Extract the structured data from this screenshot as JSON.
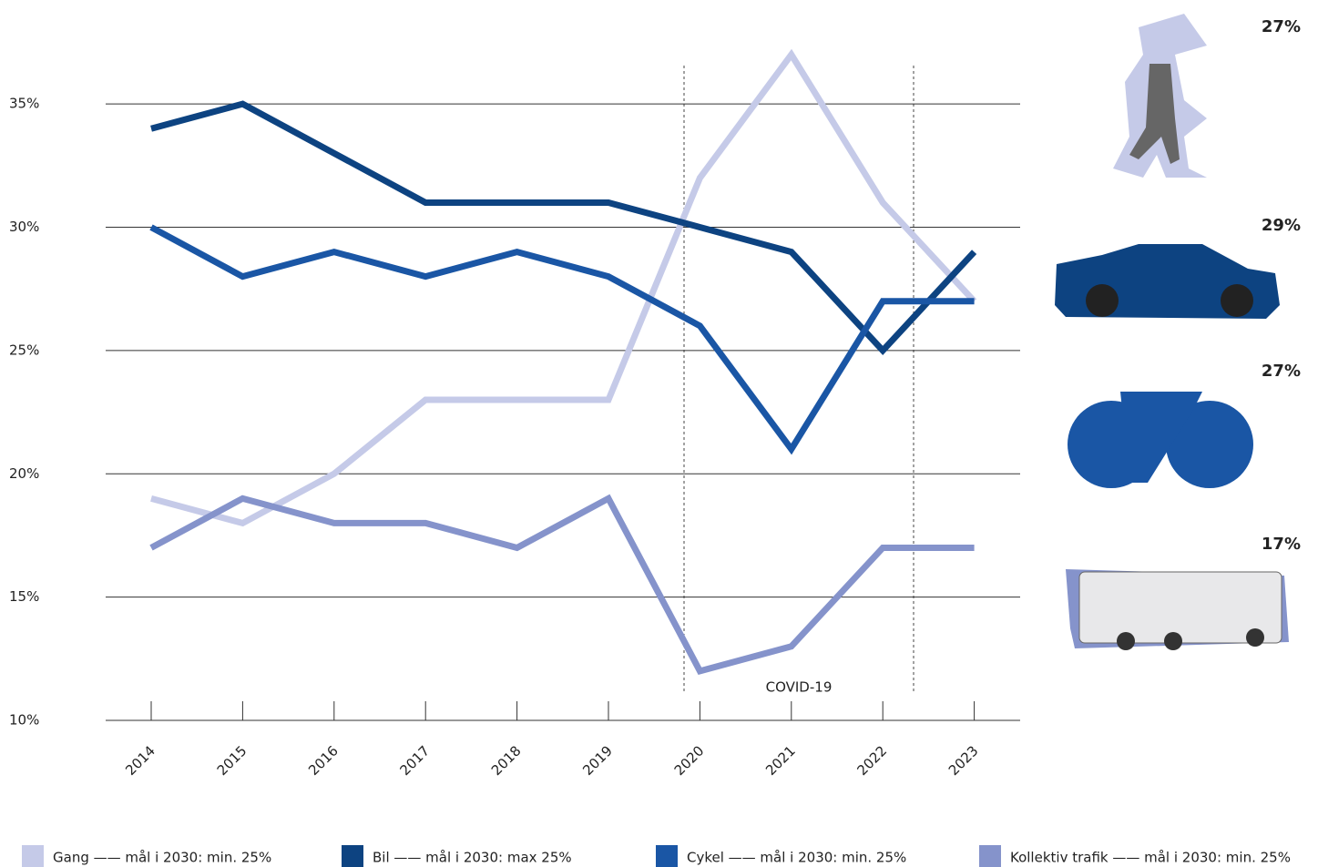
{
  "chart_data": {
    "type": "line",
    "categories": [
      "2014",
      "2015",
      "2016",
      "2017",
      "2018",
      "2019",
      "2020",
      "2021",
      "2022",
      "2023"
    ],
    "ylim": [
      10,
      37
    ],
    "yticks": [
      {
        "value": 10,
        "label": "10%"
      },
      {
        "value": 15,
        "label": "15%"
      },
      {
        "value": 20,
        "label": "20%"
      },
      {
        "value": 25,
        "label": "25%"
      },
      {
        "value": 30,
        "label": "30%"
      },
      {
        "value": 35,
        "label": "35%"
      }
    ],
    "grid": true,
    "annotation": "COVID-19",
    "series": [
      {
        "name": "Gang —— mål i 2030: min. 25%",
        "color": "#c5cae8",
        "values": [
          19,
          18,
          20,
          23,
          23,
          23,
          32,
          37,
          31,
          27
        ],
        "latest_label": "27%"
      },
      {
        "name": "Bil —— mål i 2030: max 25%",
        "color": "#0d4381",
        "values": [
          34,
          35,
          33,
          31,
          31,
          31,
          30,
          29,
          25,
          29
        ],
        "latest_label": "29%"
      },
      {
        "name": "Cykel —— mål i 2030: min. 25%",
        "color": "#1a56a5",
        "values": [
          30,
          28,
          29,
          28,
          29,
          28,
          26,
          21,
          27,
          27
        ],
        "latest_label": "27%"
      },
      {
        "name": "Kollektiv trafik —— mål i 2030: min. 25%",
        "color": "#8593cb",
        "values": [
          17,
          19,
          18,
          18,
          17,
          19,
          12,
          13,
          17,
          17
        ],
        "latest_label": "17%"
      }
    ]
  }
}
